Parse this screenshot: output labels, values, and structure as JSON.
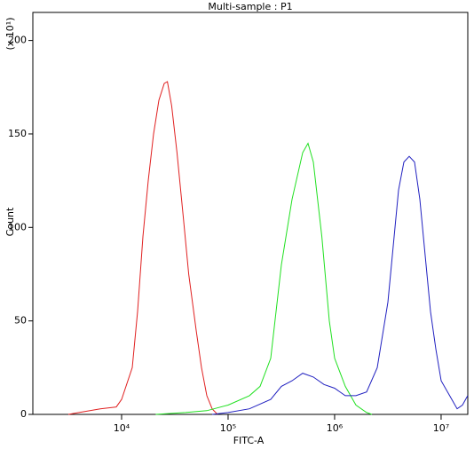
{
  "chart_data": {
    "type": "line",
    "title": "Multi-sample : P1",
    "xlabel": "FITC-A",
    "ylabel": "Count",
    "y_multiplier": "(x 10¹)",
    "xscale": "log",
    "xlim": [
      1468,
      17800000
    ],
    "ylim": [
      0,
      215
    ],
    "xticks": [
      {
        "value": 10000,
        "label": "10⁴"
      },
      {
        "value": 100000,
        "label": "10⁵"
      },
      {
        "value": 1000000,
        "label": "10⁶"
      },
      {
        "value": 10000000,
        "label": "10⁷"
      }
    ],
    "yticks": [
      0,
      50,
      100,
      150,
      200
    ],
    "series": [
      {
        "color": "#e02020",
        "x": [
          3162,
          3981,
          6310,
          8913,
          10000,
          12589,
          14125,
          15849,
          17783,
          19953,
          22387,
          25119,
          26915,
          29512,
          33113,
          38019,
          42658,
          50119,
          56234,
          63096,
          70795,
          79433
        ],
        "values": [
          0,
          1,
          3,
          4,
          8,
          25,
          55,
          95,
          125,
          150,
          168,
          177,
          178,
          165,
          140,
          105,
          75,
          45,
          25,
          10,
          3,
          0
        ]
      },
      {
        "color": "#20e020",
        "x": [
          20893,
          39811,
          63096,
          100000,
          158489,
          199526,
          251189,
          316228,
          398107,
          501187,
          562341,
          630957,
          758578,
          891251,
          1000000,
          1258925,
          1584893,
          1995262,
          2238721
        ],
        "values": [
          0,
          1,
          2,
          5,
          10,
          15,
          30,
          80,
          115,
          140,
          145,
          135,
          95,
          50,
          30,
          15,
          5,
          1,
          0
        ]
      },
      {
        "color": "#2020c0",
        "x": [
          70795,
          100000,
          158489,
          251189,
          316228,
          398107,
          501187,
          630957,
          794328,
          1000000,
          1258925,
          1584893,
          1995262,
          2511886,
          3162278,
          3548134,
          3981072,
          4466836,
          5011872,
          5623413,
          6309573,
          7079458,
          7943282,
          8912509,
          10000000,
          12589254,
          14125375,
          15848932,
          17782794
        ],
        "values": [
          0,
          1,
          3,
          8,
          15,
          18,
          22,
          20,
          16,
          14,
          10,
          10,
          12,
          25,
          60,
          90,
          120,
          135,
          138,
          135,
          115,
          85,
          55,
          35,
          18,
          8,
          3,
          5,
          10
        ]
      }
    ]
  }
}
